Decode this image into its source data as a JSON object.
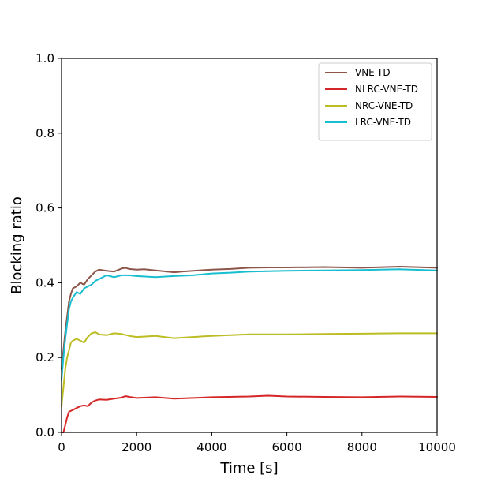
{
  "chart_data": {
    "type": "line",
    "title": "",
    "xlabel": "Time [s]",
    "ylabel": "Blocking ratio",
    "xlim": [
      0,
      10000
    ],
    "ylim": [
      0.0,
      1.0
    ],
    "xticks": [
      0,
      2000,
      4000,
      6000,
      8000,
      10000
    ],
    "xtick_labels": [
      "0",
      "2000",
      "4000",
      "6000",
      "8000",
      "10000"
    ],
    "yticks": [
      0.0,
      0.2,
      0.4,
      0.6,
      0.8,
      1.0
    ],
    "ytick_labels": [
      "0.0",
      "0.2",
      "0.4",
      "0.6",
      "0.8",
      "1.0"
    ],
    "grid": false,
    "legend_position": "top-right",
    "series": [
      {
        "name": "VNE-TD",
        "color": "#8c564b",
        "x": [
          0,
          50,
          100,
          150,
          200,
          250,
          300,
          400,
          500,
          600,
          700,
          800,
          900,
          1000,
          1200,
          1400,
          1600,
          1700,
          1800,
          2000,
          2200,
          2500,
          3000,
          3200,
          3500,
          4000,
          4500,
          5000,
          5500,
          6000,
          7000,
          8000,
          9000,
          10000
        ],
        "y": [
          0.17,
          0.22,
          0.27,
          0.31,
          0.35,
          0.37,
          0.385,
          0.39,
          0.4,
          0.395,
          0.41,
          0.42,
          0.43,
          0.435,
          0.432,
          0.43,
          0.438,
          0.44,
          0.437,
          0.435,
          0.436,
          0.433,
          0.428,
          0.43,
          0.432,
          0.435,
          0.437,
          0.44,
          0.441,
          0.441,
          0.442,
          0.44,
          0.443,
          0.44
        ]
      },
      {
        "name": "NLRC-VNE-TD",
        "color": "#d62728",
        "x": [
          0,
          50,
          100,
          150,
          200,
          300,
          400,
          500,
          600,
          700,
          800,
          900,
          1000,
          1200,
          1400,
          1600,
          1700,
          1800,
          2000,
          2500,
          3000,
          3500,
          4000,
          5000,
          5500,
          6000,
          7000,
          8000,
          9000,
          10000
        ],
        "y": [
          0.0,
          0.0,
          0.02,
          0.04,
          0.055,
          0.06,
          0.065,
          0.07,
          0.072,
          0.07,
          0.08,
          0.085,
          0.088,
          0.087,
          0.09,
          0.093,
          0.097,
          0.095,
          0.092,
          0.094,
          0.09,
          0.092,
          0.094,
          0.096,
          0.098,
          0.096,
          0.095,
          0.094,
          0.096,
          0.095
        ]
      },
      {
        "name": "NRC-VNE-TD",
        "color": "#bcbd22",
        "x": [
          0,
          50,
          100,
          150,
          200,
          250,
          300,
          400,
          500,
          600,
          700,
          800,
          900,
          1000,
          1200,
          1400,
          1600,
          1800,
          2000,
          2500,
          3000,
          3500,
          4000,
          5000,
          6000,
          7000,
          8000,
          9000,
          10000
        ],
        "y": [
          0.07,
          0.12,
          0.17,
          0.2,
          0.22,
          0.24,
          0.245,
          0.25,
          0.245,
          0.24,
          0.255,
          0.265,
          0.268,
          0.262,
          0.26,
          0.265,
          0.263,
          0.258,
          0.255,
          0.258,
          0.252,
          0.255,
          0.258,
          0.262,
          0.262,
          0.263,
          0.264,
          0.265,
          0.265
        ]
      },
      {
        "name": "LRC-VNE-TD",
        "color": "#17becf",
        "x": [
          0,
          50,
          100,
          150,
          200,
          250,
          300,
          400,
          500,
          600,
          700,
          800,
          900,
          1000,
          1200,
          1400,
          1600,
          1800,
          2000,
          2500,
          3000,
          3500,
          4000,
          4500,
          5000,
          6000,
          7000,
          8000,
          9000,
          10000
        ],
        "y": [
          0.14,
          0.2,
          0.25,
          0.29,
          0.33,
          0.35,
          0.36,
          0.375,
          0.37,
          0.385,
          0.39,
          0.395,
          0.405,
          0.41,
          0.42,
          0.415,
          0.42,
          0.42,
          0.418,
          0.415,
          0.418,
          0.42,
          0.425,
          0.427,
          0.43,
          0.432,
          0.433,
          0.434,
          0.436,
          0.433
        ]
      }
    ]
  }
}
